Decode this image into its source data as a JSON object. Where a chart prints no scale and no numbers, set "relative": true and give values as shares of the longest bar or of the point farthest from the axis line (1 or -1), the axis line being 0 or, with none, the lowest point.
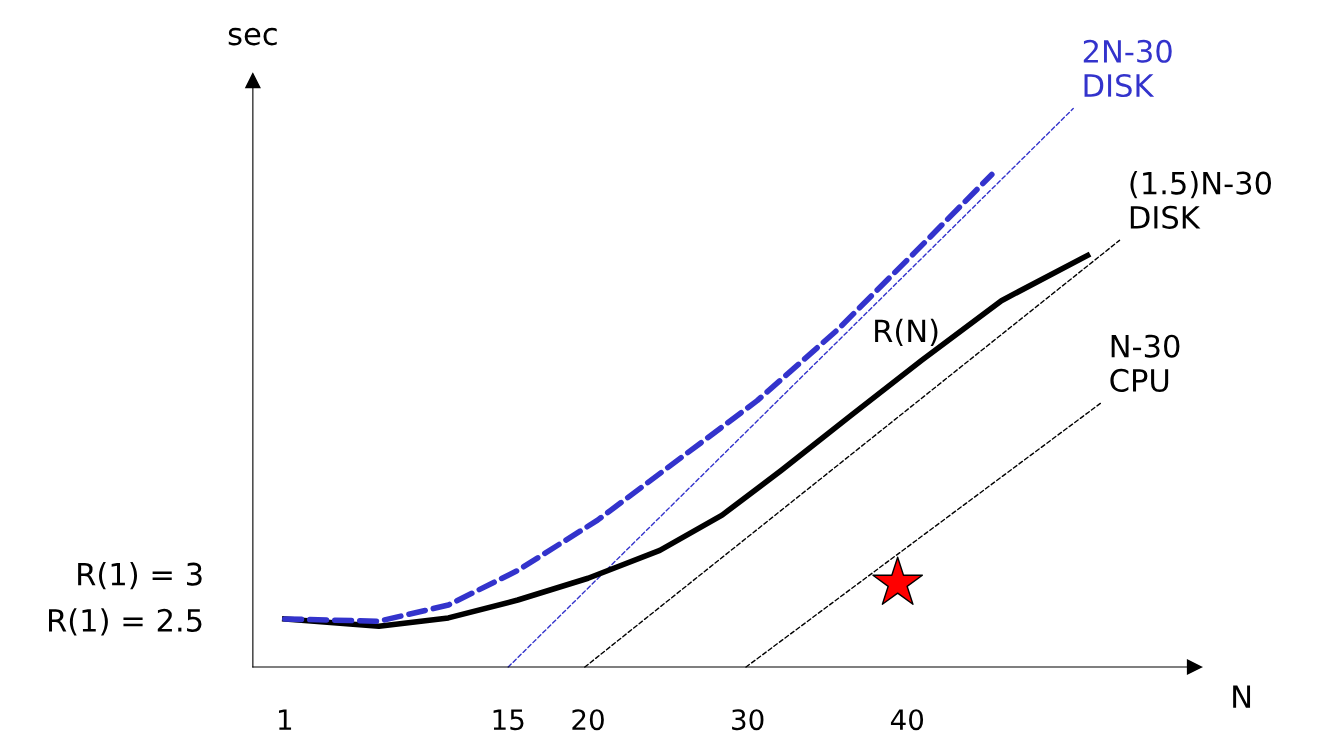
{
  "chart_data": {
    "type": "line",
    "relative": true,
    "xlabel": "N",
    "ylabel": "sec",
    "xlim": [
      -1,
      58
    ],
    "xticks": [
      1,
      15,
      20,
      30,
      40
    ],
    "series": [
      {
        "name": "2N-30\nDISK",
        "color": "#3333cc",
        "line_style": "dotted",
        "x": [
          15,
          50.4
        ],
        "values": [
          0,
          1
        ]
      },
      {
        "color": "#3333cc",
        "line_style": "dashed",
        "x": [
          1,
          6.9,
          11.25,
          15.6,
          20.6,
          25.6,
          30.6,
          35.6,
          40.6,
          45.3
        ],
        "values": [
          0.086,
          0.082,
          0.111,
          0.173,
          0.263,
          0.37,
          0.477,
          0.603,
          0.746,
          0.882
        ]
      },
      {
        "color": "#000000",
        "line_style": "solid",
        "x": [
          1,
          6.9,
          11.25,
          15.6,
          20,
          24.5,
          28.4,
          32.1,
          36.5,
          40.9,
          45.9,
          51.3
        ],
        "values": [
          0.086,
          0.073,
          0.088,
          0.12,
          0.159,
          0.209,
          0.272,
          0.352,
          0.451,
          0.549,
          0.656,
          0.737
        ]
      },
      {
        "name": "(1.5)N-30\nDISK",
        "color": "#000000",
        "line_style": "dotted",
        "x": [
          19.8,
          53.3
        ],
        "values": [
          0,
          0.764
        ]
      },
      {
        "name": "N-30\nCPU",
        "color": "#000000",
        "line_style": "dotted",
        "x": [
          29.9,
          52.1
        ],
        "values": [
          0,
          0.472
        ]
      },
      {
        "type": "scatter",
        "marker": "star",
        "color": "#ff0000",
        "x": [
          39.4
        ],
        "values": [
          0.15
        ]
      }
    ],
    "annotations": [
      "R(N)",
      "R(1) = 3",
      "R(1) = 2.5"
    ],
    "grid": false,
    "legend": false
  }
}
